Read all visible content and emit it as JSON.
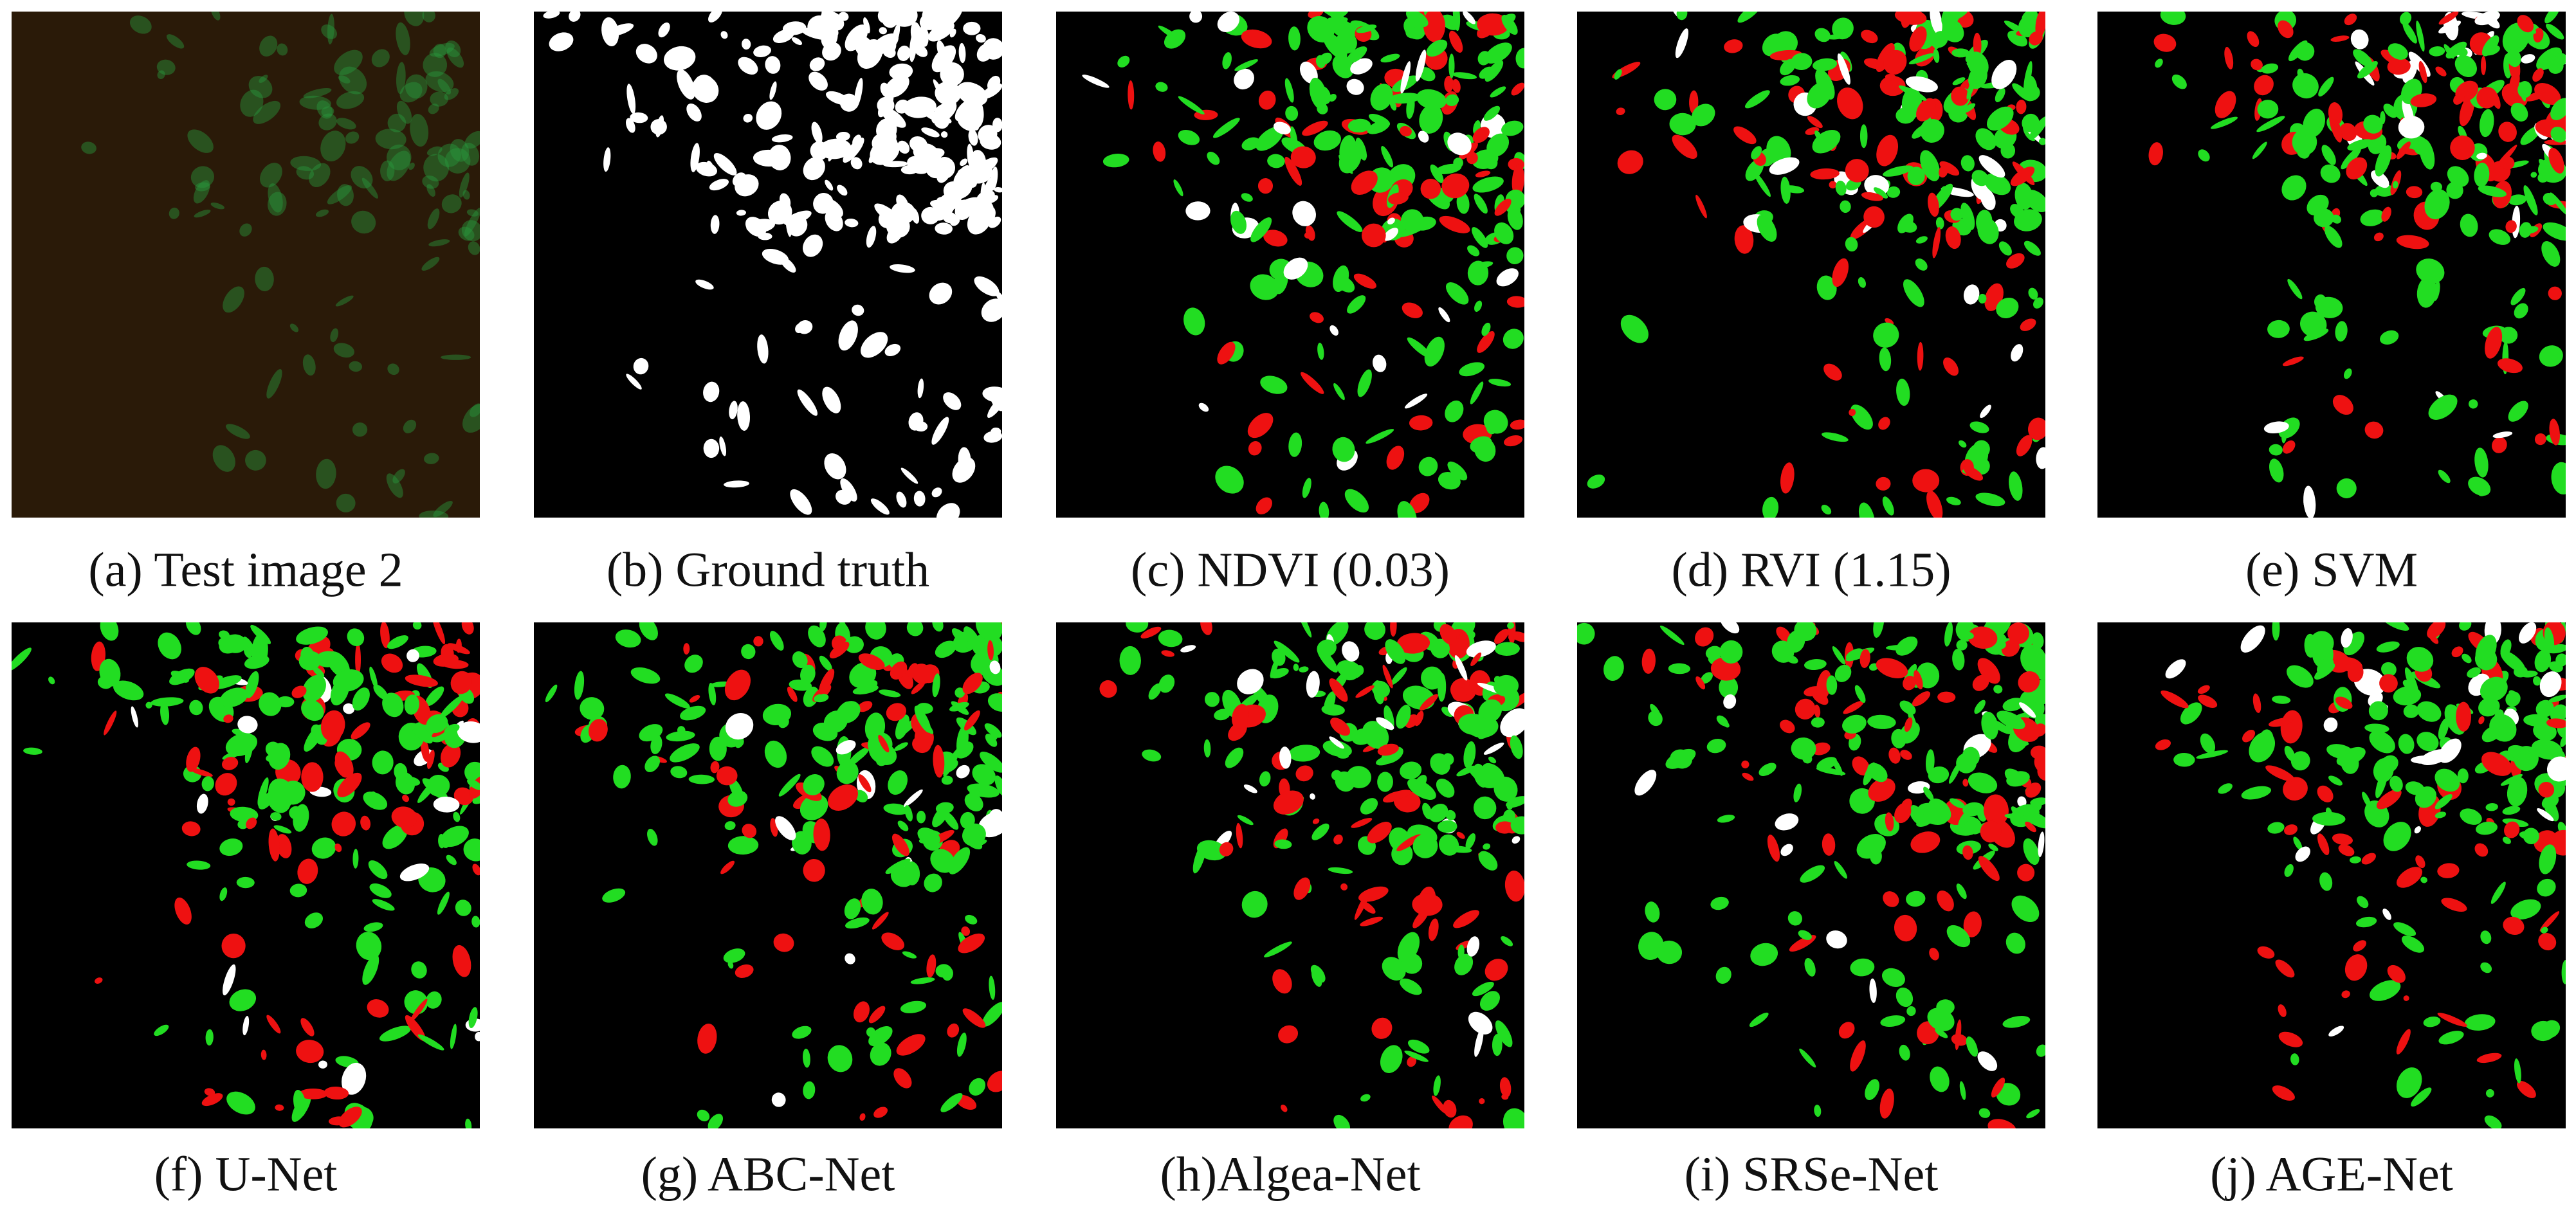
{
  "figure": {
    "panels": [
      {
        "caption": "(a) Test image 2"
      },
      {
        "caption": "(b) Ground truth"
      },
      {
        "caption": "(c) NDVI (0.03)"
      },
      {
        "caption": "(d) RVI (1.15)"
      },
      {
        "caption": "(e) SVM"
      },
      {
        "caption": "(f) U-Net"
      },
      {
        "caption": "(g) ABC-Net"
      },
      {
        "caption": "(h)Algea-Net"
      },
      {
        "caption": "(i) SRSe-Net"
      },
      {
        "caption": "(j) AGE-Net"
      }
    ]
  }
}
